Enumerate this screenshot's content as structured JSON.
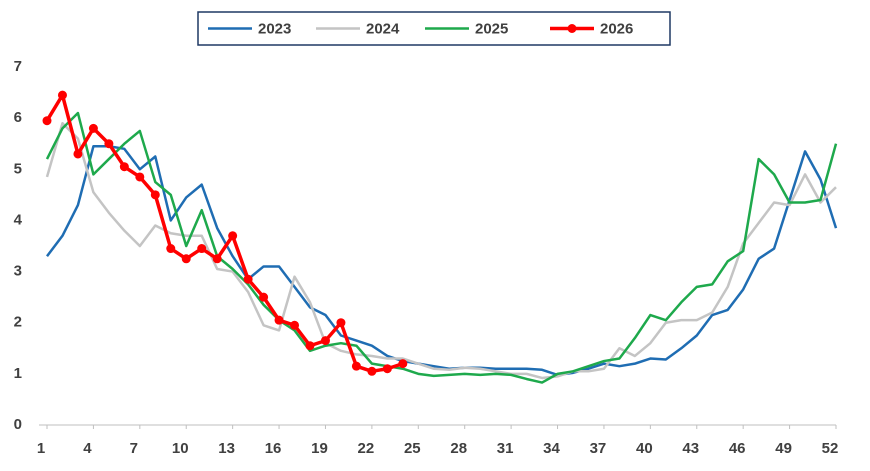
{
  "chart_data": {
    "type": "line",
    "x": [
      1,
      2,
      3,
      4,
      5,
      6,
      7,
      8,
      9,
      10,
      11,
      12,
      13,
      14,
      15,
      16,
      17,
      18,
      19,
      20,
      21,
      22,
      23,
      24,
      25,
      26,
      27,
      28,
      29,
      30,
      31,
      32,
      33,
      34,
      35,
      36,
      37,
      38,
      39,
      40,
      41,
      42,
      43,
      44,
      45,
      46,
      47,
      48,
      49,
      50,
      51,
      52
    ],
    "series": [
      {
        "name": "2023",
        "color": "#1f6db3",
        "values": [
          3.3,
          3.7,
          4.3,
          5.45,
          5.45,
          5.4,
          5.0,
          5.25,
          4.0,
          4.45,
          4.7,
          3.85,
          3.3,
          2.85,
          3.1,
          3.1,
          2.7,
          2.3,
          2.15,
          1.75,
          1.65,
          1.55,
          1.35,
          1.25,
          1.2,
          1.15,
          1.1,
          1.12,
          1.12,
          1.1,
          1.1,
          1.1,
          1.08,
          0.98,
          1.02,
          1.1,
          1.2,
          1.15,
          1.2,
          1.3,
          1.28,
          1.5,
          1.75,
          2.15,
          2.25,
          2.65,
          3.25,
          3.45,
          4.4,
          5.35,
          4.8,
          3.85
        ]
      },
      {
        "name": "2024",
        "color": "#c4c4c4",
        "values": [
          4.85,
          5.9,
          5.6,
          4.55,
          4.15,
          3.8,
          3.5,
          3.9,
          3.75,
          3.7,
          3.7,
          3.05,
          3.0,
          2.6,
          1.95,
          1.85,
          2.9,
          2.4,
          1.6,
          1.45,
          1.38,
          1.35,
          1.3,
          1.3,
          1.2,
          1.1,
          1.08,
          1.12,
          1.1,
          1.05,
          1.0,
          1.0,
          0.92,
          0.95,
          1.05,
          1.05,
          1.1,
          1.5,
          1.35,
          1.6,
          2.0,
          2.05,
          2.05,
          2.2,
          2.7,
          3.55,
          3.95,
          4.35,
          4.3,
          4.9,
          4.35,
          4.65
        ]
      },
      {
        "name": "2025",
        "color": "#1ea94c",
        "values": [
          5.2,
          5.8,
          6.1,
          4.9,
          5.2,
          5.5,
          5.75,
          4.75,
          4.5,
          3.5,
          4.2,
          3.3,
          3.05,
          2.75,
          2.35,
          2.05,
          1.85,
          1.45,
          1.55,
          1.6,
          1.55,
          1.2,
          1.15,
          1.1,
          1.0,
          0.96,
          0.98,
          1.0,
          0.98,
          1.0,
          0.98,
          0.9,
          0.83,
          1.0,
          1.05,
          1.15,
          1.25,
          1.3,
          1.7,
          2.15,
          2.05,
          2.4,
          2.7,
          2.75,
          3.2,
          3.4,
          5.2,
          4.9,
          4.35,
          4.35,
          4.4,
          5.5
        ]
      },
      {
        "name": "2026",
        "color": "#ff0000",
        "markers": true,
        "values": [
          5.95,
          6.45,
          5.3,
          5.8,
          5.5,
          5.05,
          4.85,
          4.5,
          3.45,
          3.25,
          3.45,
          3.25,
          3.7,
          2.85,
          2.5,
          2.05,
          1.95,
          1.55,
          1.65,
          2.0,
          1.15,
          1.05,
          1.1,
          1.2,
          null,
          null,
          null,
          null,
          null,
          null,
          null,
          null,
          null,
          null,
          null,
          null,
          null,
          null,
          null,
          null,
          null,
          null,
          null,
          null,
          null,
          null,
          null,
          null,
          null,
          null,
          null,
          null
        ]
      }
    ],
    "xlim": [
      1,
      52
    ],
    "xticks": [
      1,
      4,
      7,
      10,
      13,
      16,
      19,
      22,
      25,
      28,
      31,
      34,
      37,
      40,
      43,
      46,
      49,
      52
    ],
    "ylim": [
      0,
      7
    ],
    "yticks": [
      0,
      1,
      2,
      3,
      4,
      5,
      6,
      7
    ],
    "grid": false,
    "legend": "top"
  }
}
